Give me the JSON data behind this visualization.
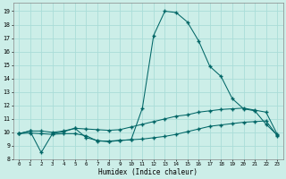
{
  "xlabel": "Humidex (Indice chaleur)",
  "bg_color": "#cceee8",
  "grid_color": "#aaddd8",
  "line_color": "#006666",
  "xlim": [
    -0.5,
    23.5
  ],
  "ylim": [
    8.0,
    19.6
  ],
  "xticks": [
    0,
    1,
    2,
    3,
    4,
    5,
    6,
    7,
    8,
    9,
    10,
    11,
    12,
    13,
    14,
    15,
    16,
    17,
    18,
    19,
    20,
    21,
    22,
    23
  ],
  "yticks": [
    8,
    9,
    10,
    11,
    12,
    13,
    14,
    15,
    16,
    17,
    18,
    19
  ],
  "line1_x": [
    0,
    1,
    2,
    3,
    4,
    5,
    6,
    7,
    8,
    9,
    10,
    11,
    12,
    13,
    14,
    15,
    16,
    17,
    18,
    19,
    20,
    21,
    22,
    23
  ],
  "line1_y": [
    9.9,
    10.1,
    10.1,
    10.0,
    10.1,
    10.3,
    10.25,
    10.2,
    10.15,
    10.2,
    10.4,
    10.6,
    10.8,
    11.0,
    11.2,
    11.3,
    11.5,
    11.6,
    11.7,
    11.75,
    11.8,
    11.65,
    11.5,
    9.85
  ],
  "line2_x": [
    0,
    1,
    2,
    3,
    4,
    5,
    6,
    7,
    8,
    9,
    10,
    11,
    12,
    13,
    14,
    15,
    16,
    17,
    18,
    19,
    20,
    21,
    22,
    23
  ],
  "line2_y": [
    9.9,
    10.1,
    8.5,
    9.9,
    10.05,
    10.3,
    9.6,
    9.4,
    9.3,
    9.4,
    9.45,
    11.8,
    17.2,
    19.0,
    18.9,
    18.2,
    16.8,
    14.9,
    14.15,
    12.5,
    11.75,
    11.6,
    10.6,
    9.8
  ],
  "line3_x": [
    0,
    1,
    2,
    3,
    4,
    5,
    6,
    7,
    8,
    9,
    10,
    11,
    12,
    13,
    14,
    15,
    16,
    17,
    18,
    19,
    20,
    21,
    22,
    23
  ],
  "line3_y": [
    9.9,
    9.95,
    9.9,
    9.85,
    9.9,
    9.9,
    9.75,
    9.35,
    9.35,
    9.4,
    9.45,
    9.5,
    9.6,
    9.7,
    9.85,
    10.05,
    10.25,
    10.45,
    10.55,
    10.65,
    10.75,
    10.8,
    10.85,
    9.75
  ]
}
